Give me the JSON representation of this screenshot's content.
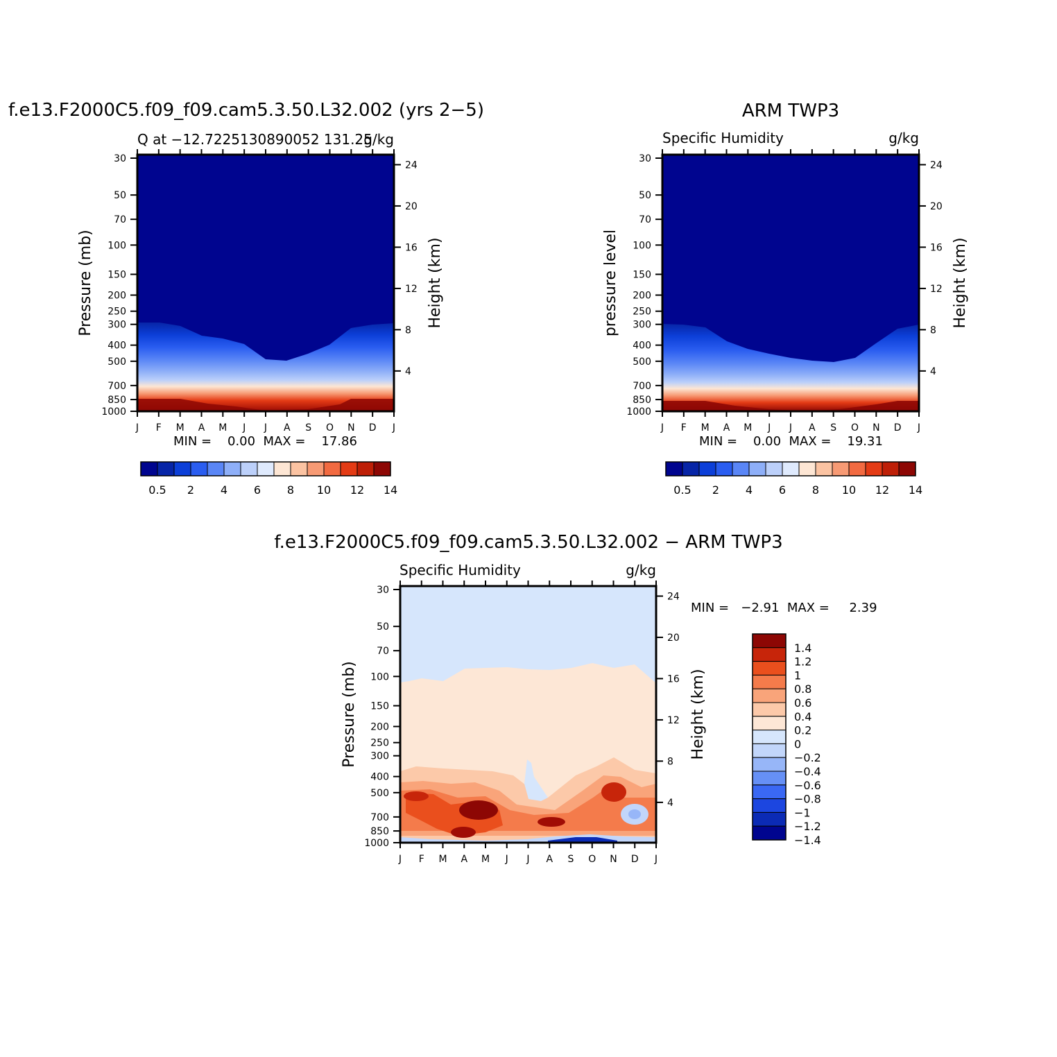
{
  "months": [
    "J",
    "F",
    "M",
    "A",
    "M",
    "J",
    "J",
    "A",
    "S",
    "O",
    "N",
    "D",
    "J"
  ],
  "pressure_ticks": [
    "30",
    "50",
    "70",
    "100",
    "150",
    "200",
    "250",
    "300",
    "400",
    "500",
    "700",
    "850",
    "1000"
  ],
  "height_ticks": [
    "24",
    "20",
    "16",
    "12",
    "8",
    "4"
  ],
  "panels": {
    "model": {
      "title": "f.e13.F2000C5.f09_f09.cam5.3.50.L32.002 (yrs 2−5)",
      "left_label": "Q at −12.7225130890052 131.25",
      "right_label": "g/kg",
      "ylabel": "Pressure (mb)",
      "ylabel_right": "Height (km)",
      "stats": "MIN =    0.00  MAX =    17.86"
    },
    "obs": {
      "title": "ARM TWP3",
      "left_label": "Specific Humidity",
      "right_label": "g/kg",
      "ylabel": "pressure level",
      "ylabel_right": "Height (km)",
      "stats": "MIN =    0.00  MAX =    19.31"
    },
    "diff": {
      "title": "f.e13.F2000C5.f09_f09.cam5.3.50.L32.002 − ARM TWP3",
      "left_label": "Specific Humidity",
      "right_label": "g/kg",
      "ylabel": "Pressure (mb)",
      "ylabel_right": "Height (km)",
      "stats": "MIN =   −2.91  MAX =     2.39"
    }
  },
  "colorbar_abs": {
    "colors": [
      "#00058f",
      "#0725a7",
      "#0c3fd8",
      "#2a5df0",
      "#5a86f6",
      "#8eaff8",
      "#bcd0fa",
      "#dfeafd",
      "#fde6d4",
      "#fbc3a2",
      "#f79a74",
      "#f26a41",
      "#e43b15",
      "#be1f07",
      "#8d0704"
    ],
    "labels": [
      "0.5",
      "2",
      "4",
      "6",
      "8",
      "10",
      "12",
      "14"
    ]
  },
  "colorbar_diff": {
    "colors": [
      "#00058f",
      "#0b2bb5",
      "#1c46e0",
      "#3a68f4",
      "#6690f6",
      "#97b6f8",
      "#c2d6fa",
      "#d6e6fc",
      "#fde7d6",
      "#fcc9a9",
      "#f9a47a",
      "#f47b4b",
      "#ea4f1d",
      "#c7250a",
      "#8d0704"
    ],
    "labels": [
      "1.4",
      "1.2",
      "1",
      "0.8",
      "0.6",
      "0.4",
      "0.2",
      "0",
      "−0.2",
      "−0.4",
      "−0.6",
      "−0.8",
      "−1",
      "−1.2",
      "−1.4"
    ]
  },
  "chart_data": [
    {
      "type": "heatmap",
      "title": "f.e13.F2000C5.f09_f09.cam5.3.50.L32.002 (yrs 2−5)",
      "xlabel": "",
      "ylabel": "Pressure (mb)",
      "units": "g/kg",
      "x": [
        "J",
        "F",
        "M",
        "A",
        "M",
        "J",
        "J",
        "A",
        "S",
        "O",
        "N",
        "D",
        "J"
      ],
      "y_pressure": [
        30,
        50,
        70,
        100,
        150,
        200,
        250,
        300,
        400,
        500,
        700,
        850,
        1000
      ],
      "moist_top_mb": [
        290,
        290,
        300,
        340,
        350,
        375,
        440,
        440,
        410,
        370,
        300,
        290,
        290
      ],
      "min": 0.0,
      "max": 17.86
    },
    {
      "type": "heatmap",
      "title": "ARM TWP3",
      "xlabel": "",
      "ylabel": "pressure level",
      "units": "g/kg",
      "x": [
        "J",
        "F",
        "M",
        "A",
        "M",
        "J",
        "J",
        "A",
        "S",
        "O",
        "N",
        "D",
        "J"
      ],
      "y_pressure": [
        30,
        50,
        70,
        100,
        150,
        200,
        250,
        300,
        400,
        500,
        700,
        850,
        1000
      ],
      "moist_top_mb": [
        290,
        290,
        300,
        360,
        390,
        420,
        440,
        450,
        450,
        440,
        380,
        300,
        290
      ],
      "min": 0.0,
      "max": 19.31
    },
    {
      "type": "heatmap",
      "title": "f.e13.F2000C5.f09_f09.cam5.3.50.L32.002 − ARM TWP3",
      "xlabel": "",
      "ylabel": "Pressure (mb)",
      "units": "g/kg",
      "x": [
        "J",
        "F",
        "M",
        "A",
        "M",
        "J",
        "J",
        "A",
        "S",
        "O",
        "N",
        "D",
        "J"
      ],
      "y_pressure": [
        30,
        50,
        70,
        100,
        150,
        200,
        250,
        300,
        400,
        500,
        700,
        850,
        1000
      ],
      "zero_contour_mb": [
        100,
        95,
        100,
        80,
        80,
        85,
        82,
        85,
        84,
        75,
        80,
        78,
        95
      ],
      "min": -2.91,
      "max": 2.39
    }
  ]
}
